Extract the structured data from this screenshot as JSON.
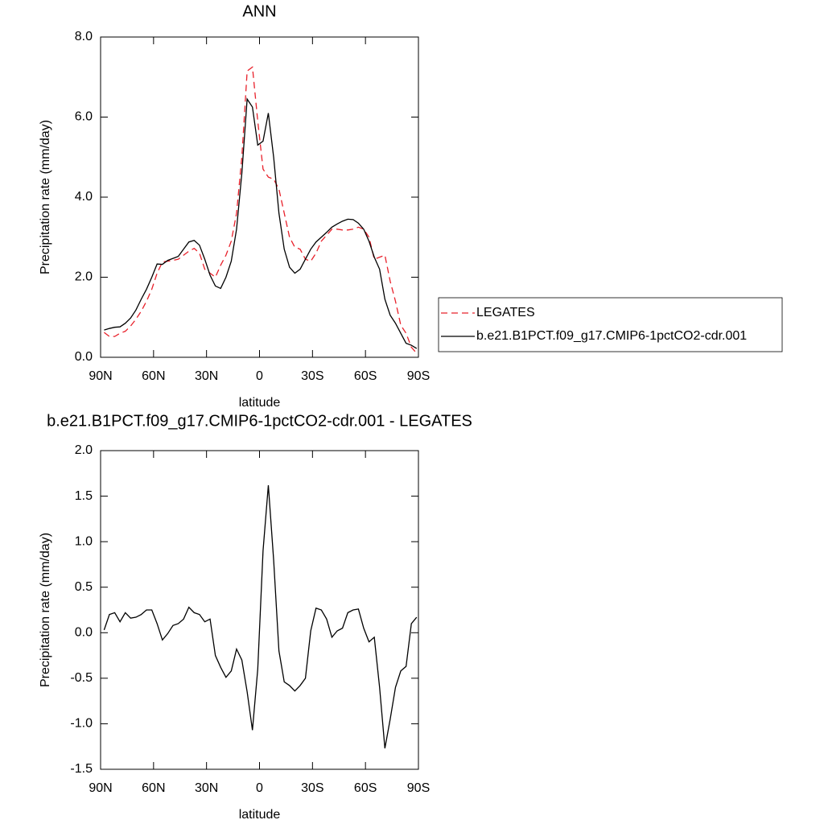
{
  "chart_data": [
    {
      "type": "line",
      "title": "ANN",
      "x_label": "latitude",
      "y_label": "Precipitation rate (mm/day)",
      "x": [
        88,
        85,
        82,
        79,
        76,
        73,
        70,
        67,
        64,
        61,
        58,
        55,
        52,
        49,
        46,
        43,
        40,
        37,
        34,
        31,
        28,
        25,
        22,
        19,
        16,
        13,
        10,
        7,
        4,
        1,
        -2,
        -5,
        -8,
        -11,
        -14,
        -17,
        -20,
        -23,
        -26,
        -29,
        -32,
        -35,
        -38,
        -41,
        -44,
        -47,
        -50,
        -53,
        -56,
        -59,
        -62,
        -65,
        -68,
        -71,
        -74,
        -77,
        -80,
        -83,
        -86,
        -89
      ],
      "series": [
        {
          "name": "LEGATES",
          "color": "#e8202a",
          "dashed": true,
          "values": [
            0.62,
            0.52,
            0.52,
            0.6,
            0.65,
            0.78,
            0.95,
            1.15,
            1.4,
            1.7,
            2.1,
            2.38,
            2.4,
            2.42,
            2.45,
            2.55,
            2.65,
            2.72,
            2.6,
            2.2,
            2.1,
            2.0,
            2.3,
            2.55,
            2.9,
            3.6,
            5.0,
            7.15,
            7.25,
            5.9,
            4.7,
            4.5,
            4.45,
            4.2,
            3.6,
            3.0,
            2.75,
            2.7,
            2.45,
            2.4,
            2.6,
            2.9,
            3.05,
            3.2,
            3.2,
            3.18,
            3.18,
            3.2,
            3.25,
            3.2,
            3.0,
            2.45,
            2.5,
            2.55,
            1.9,
            1.4,
            0.8,
            0.6,
            0.25,
            0.1
          ]
        },
        {
          "name": "b.e21.B1PCT.f09_g17.CMIP6-1pctCO2-cdr.001",
          "color": "#000000",
          "dashed": false,
          "values": [
            0.68,
            0.72,
            0.75,
            0.76,
            0.85,
            0.98,
            1.18,
            1.45,
            1.7,
            2.0,
            2.33,
            2.32,
            2.42,
            2.47,
            2.52,
            2.7,
            2.88,
            2.92,
            2.8,
            2.45,
            2.05,
            1.78,
            1.72,
            2.0,
            2.4,
            3.2,
            4.6,
            6.45,
            6.25,
            5.3,
            5.4,
            6.1,
            5.0,
            3.6,
            2.7,
            2.25,
            2.1,
            2.2,
            2.45,
            2.7,
            2.88,
            3.0,
            3.12,
            3.25,
            3.33,
            3.4,
            3.45,
            3.44,
            3.35,
            3.2,
            2.9,
            2.5,
            2.2,
            1.45,
            1.05,
            0.85,
            0.6,
            0.35,
            0.3,
            0.22
          ]
        }
      ],
      "xlim": [
        90,
        -90
      ],
      "xticks": [
        {
          "value": 90,
          "label": "90N"
        },
        {
          "value": 60,
          "label": "60N"
        },
        {
          "value": 30,
          "label": "30N"
        },
        0,
        {
          "value": -30,
          "label": "30S"
        },
        {
          "value": -60,
          "label": "60S"
        },
        {
          "value": -90,
          "label": "90S"
        }
      ],
      "ylim": [
        0,
        8
      ],
      "yticks": [
        {
          "value": 0,
          "label": "0.0"
        },
        {
          "value": 2,
          "label": "2.0"
        },
        {
          "value": 4,
          "label": "4.0"
        },
        {
          "value": 6,
          "label": "6.0"
        },
        {
          "value": 8,
          "label": "8.0"
        }
      ],
      "grid": false,
      "legend": "right"
    },
    {
      "type": "line",
      "title": "b.e21.B1PCT.f09_g17.CMIP6-1pctCO2-cdr.001 - LEGATES",
      "x_label": "latitude",
      "y_label": "Precipitation rate (mm/day)",
      "x": [
        88,
        85,
        82,
        79,
        76,
        73,
        70,
        67,
        64,
        61,
        58,
        55,
        52,
        49,
        46,
        43,
        40,
        37,
        34,
        31,
        28,
        25,
        22,
        19,
        16,
        13,
        10,
        7,
        4,
        1,
        -2,
        -5,
        -8,
        -11,
        -14,
        -17,
        -20,
        -23,
        -26,
        -29,
        -32,
        -35,
        -38,
        -41,
        -44,
        -47,
        -50,
        -53,
        -56,
        -59,
        -62,
        -65,
        -68,
        -71,
        -74,
        -77,
        -80,
        -83,
        -86,
        -89
      ],
      "values": [
        0.03,
        0.2,
        0.22,
        0.12,
        0.22,
        0.16,
        0.17,
        0.2,
        0.25,
        0.25,
        0.1,
        -0.08,
        -0.01,
        0.08,
        0.1,
        0.15,
        0.28,
        0.22,
        0.2,
        0.12,
        0.15,
        -0.25,
        -0.38,
        -0.49,
        -0.42,
        -0.18,
        -0.3,
        -0.65,
        -1.07,
        -0.4,
        0.9,
        1.62,
        0.8,
        -0.2,
        -0.54,
        -0.58,
        -0.64,
        -0.58,
        -0.5,
        0.02,
        0.27,
        0.25,
        0.15,
        -0.05,
        0.02,
        0.05,
        0.22,
        0.25,
        0.26,
        0.05,
        -0.1,
        -0.05,
        -0.6,
        -1.27,
        -0.95,
        -0.6,
        -0.42,
        -0.37,
        0.1,
        0.17
      ],
      "color": "#000000",
      "xlim": [
        90,
        -90
      ],
      "xticks": [
        {
          "value": 90,
          "label": "90N"
        },
        {
          "value": 60,
          "label": "60N"
        },
        {
          "value": 30,
          "label": "30N"
        },
        0,
        {
          "value": -30,
          "label": "30S"
        },
        {
          "value": -60,
          "label": "60S"
        },
        {
          "value": -90,
          "label": "90S"
        }
      ],
      "ylim": [
        -1.5,
        2
      ],
      "yticks": [
        {
          "value": 2,
          "label": "2.0"
        },
        1.5,
        {
          "value": 1,
          "label": "1.0"
        },
        0.5,
        {
          "value": 0,
          "label": "0.0"
        },
        -0.5,
        {
          "value": -1,
          "label": "-1.0"
        },
        -1.5
      ],
      "grid": false
    }
  ]
}
